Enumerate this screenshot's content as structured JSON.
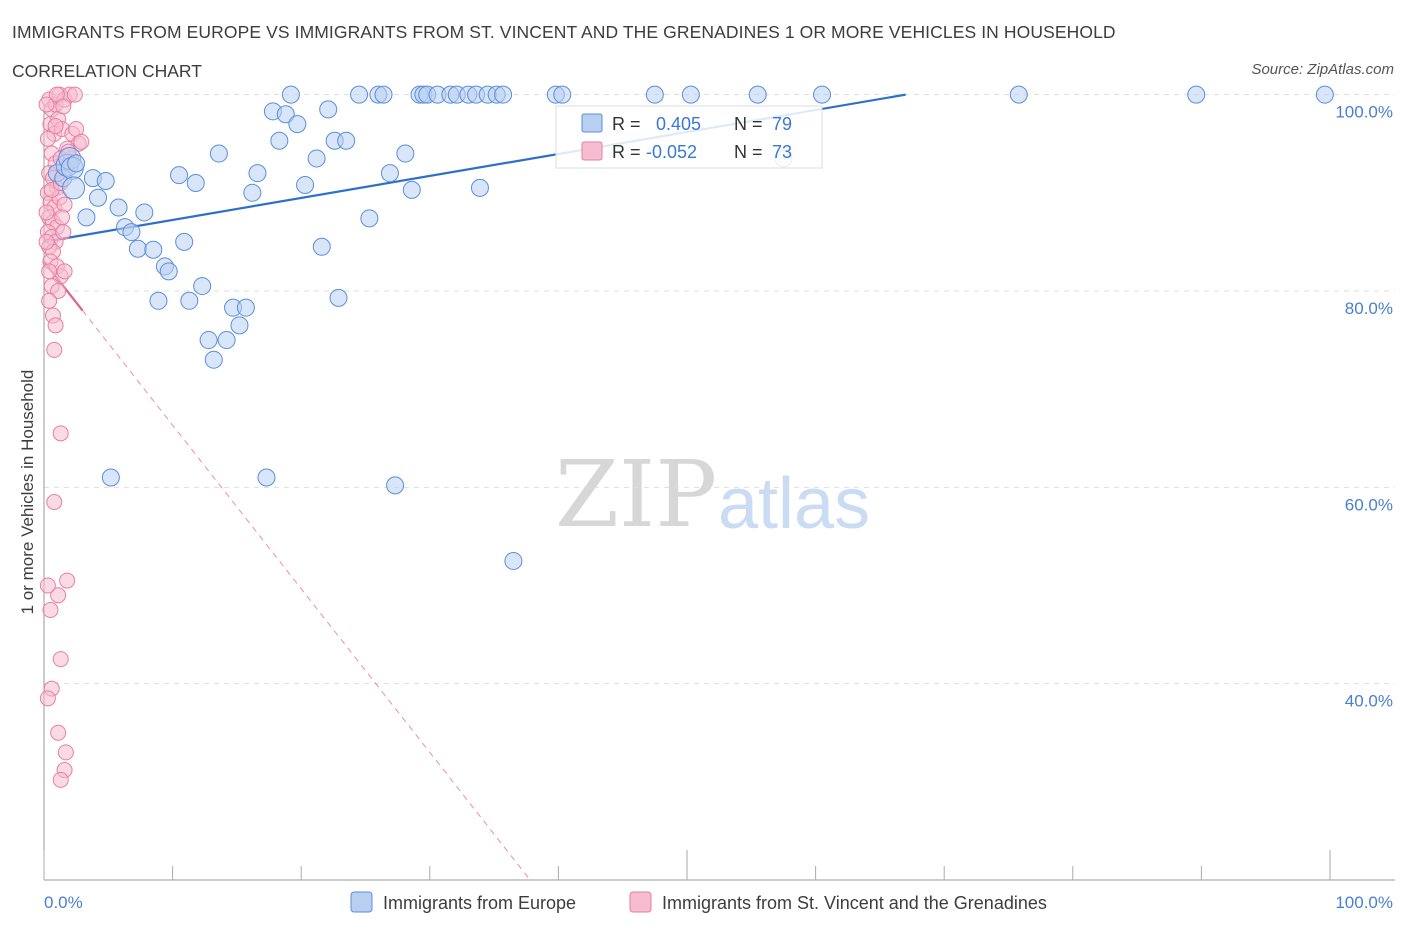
{
  "header": {
    "title": "IMMIGRANTS FROM EUROPE VS IMMIGRANTS FROM ST. VINCENT AND THE GRENADINES 1 OR MORE VEHICLES IN HOUSEHOLD",
    "subtitle": "CORRELATION CHART",
    "source": "Source: ZipAtlas.com"
  },
  "watermark": {
    "zip": "ZIP",
    "atlas": "atlas"
  },
  "colors": {
    "europe": "#5b8fd9",
    "europe_fill": "#b9cff2",
    "svg": "#e87ea3",
    "svg_fill": "#f6bdd0",
    "trend_europe": "#2f6fcc",
    "trend_svg": "#e0608e",
    "grid": "#dddddd",
    "tick_label": "#4a7fd0"
  },
  "stats": {
    "europe": {
      "r_label": "R =",
      "r_value": "0.405",
      "n_label": "N =",
      "n_value": "79"
    },
    "svg": {
      "r_label": "R =",
      "r_value": "-0.052",
      "n_label": "N =",
      "n_value": "73"
    }
  },
  "chart_data": {
    "type": "scatter",
    "xlabel": "",
    "ylabel": "1 or more Vehicles in Household",
    "xlim": [
      0,
      100
    ],
    "ylim": [
      20,
      102
    ],
    "x_tick_labels": [
      "0.0%",
      "100.0%"
    ],
    "y_ticks": [
      {
        "value": 100,
        "label": "100.0%"
      },
      {
        "value": 80,
        "label": "80.0%"
      },
      {
        "value": 60,
        "label": "60.0%"
      },
      {
        "value": 40,
        "label": "40.0%"
      }
    ],
    "grid": true,
    "legend_position": "bottom",
    "series": [
      {
        "name": "Immigrants from Europe",
        "trend": {
          "x": [
            0,
            67
          ],
          "y": [
            85.0,
            100.0
          ]
        },
        "points": [
          [
            1.0,
            92.0
          ],
          [
            1.5,
            91.5
          ],
          [
            1.8,
            92.8
          ],
          [
            2.0,
            93.5
          ],
          [
            2.2,
            92.5
          ],
          [
            2.3,
            90.5
          ],
          [
            3.3,
            87.5
          ],
          [
            3.8,
            91.5
          ],
          [
            4.2,
            89.5
          ],
          [
            4.8,
            91.2
          ],
          [
            5.2,
            61.0
          ],
          [
            5.8,
            88.5
          ],
          [
            6.3,
            86.5
          ],
          [
            6.8,
            86.0
          ],
          [
            7.3,
            84.3
          ],
          [
            7.8,
            88.0
          ],
          [
            8.5,
            84.2
          ],
          [
            8.9,
            79.0
          ],
          [
            9.4,
            82.5
          ],
          [
            9.7,
            82.0
          ],
          [
            10.5,
            91.8
          ],
          [
            10.9,
            85.0
          ],
          [
            11.3,
            79.0
          ],
          [
            11.8,
            91.0
          ],
          [
            12.3,
            80.5
          ],
          [
            12.8,
            75.0
          ],
          [
            13.2,
            73.0
          ],
          [
            13.6,
            94.0
          ],
          [
            14.2,
            75.0
          ],
          [
            14.7,
            78.3
          ],
          [
            15.2,
            76.5
          ],
          [
            15.7,
            78.3
          ],
          [
            16.2,
            90.0
          ],
          [
            16.6,
            92.0
          ],
          [
            17.3,
            61.0
          ],
          [
            17.8,
            98.3
          ],
          [
            18.3,
            95.3
          ],
          [
            18.8,
            98.0
          ],
          [
            19.2,
            100.0
          ],
          [
            19.7,
            97.0
          ],
          [
            20.3,
            90.8
          ],
          [
            21.2,
            93.5
          ],
          [
            21.6,
            84.5
          ],
          [
            22.1,
            98.5
          ],
          [
            22.6,
            95.3
          ],
          [
            22.9,
            79.3
          ],
          [
            23.5,
            95.3
          ],
          [
            24.5,
            100.0
          ],
          [
            25.3,
            87.4
          ],
          [
            26.0,
            100.0
          ],
          [
            26.4,
            100.0
          ],
          [
            26.9,
            92.0
          ],
          [
            27.3,
            60.2
          ],
          [
            28.1,
            94.0
          ],
          [
            28.6,
            90.3
          ],
          [
            29.2,
            100.0
          ],
          [
            29.5,
            100.0
          ],
          [
            29.8,
            100.0
          ],
          [
            30.6,
            100.0
          ],
          [
            31.6,
            100.0
          ],
          [
            32.1,
            100.0
          ],
          [
            33.0,
            100.0
          ],
          [
            33.6,
            100.0
          ],
          [
            33.9,
            90.5
          ],
          [
            34.5,
            100.0
          ],
          [
            35.2,
            100.0
          ],
          [
            35.7,
            100.0
          ],
          [
            36.5,
            52.5
          ],
          [
            39.8,
            100.0
          ],
          [
            40.3,
            100.0
          ],
          [
            47.5,
            100.0
          ],
          [
            50.3,
            100.0
          ],
          [
            55.5,
            100.0
          ],
          [
            57.5,
            93.5
          ],
          [
            60.5,
            100.0
          ],
          [
            75.8,
            100.0
          ],
          [
            89.6,
            100.0
          ],
          [
            99.6,
            100.0
          ],
          [
            2.5,
            93.0
          ]
        ]
      },
      {
        "name": "Immigrants from St. Vincent and the Grenadines",
        "trend": {
          "x": [
            0,
            3.0
          ],
          "y": [
            83.0,
            78.0
          ]
        },
        "points": [
          [
            0.4,
            99.5
          ],
          [
            0.6,
            98.5
          ],
          [
            0.9,
            99.0
          ],
          [
            1.2,
            100.0
          ],
          [
            1.6,
            99.5
          ],
          [
            2.0,
            100.0
          ],
          [
            2.4,
            100.0
          ],
          [
            0.5,
            97.0
          ],
          [
            0.8,
            96.0
          ],
          [
            1.1,
            97.5
          ],
          [
            1.4,
            96.5
          ],
          [
            2.2,
            96.0
          ],
          [
            2.7,
            95.0
          ],
          [
            1.8,
            94.5
          ],
          [
            0.3,
            95.5
          ],
          [
            0.6,
            94.0
          ],
          [
            0.9,
            93.0
          ],
          [
            1.3,
            93.5
          ],
          [
            1.7,
            92.5
          ],
          [
            2.1,
            93.5
          ],
          [
            0.4,
            92.0
          ],
          [
            0.7,
            91.5
          ],
          [
            1.0,
            90.5
          ],
          [
            0.3,
            90.0
          ],
          [
            0.5,
            89.0
          ],
          [
            0.8,
            88.5
          ],
          [
            1.2,
            89.5
          ],
          [
            1.6,
            88.8
          ],
          [
            0.4,
            87.5
          ],
          [
            0.7,
            87.0
          ],
          [
            1.0,
            86.5
          ],
          [
            1.4,
            87.5
          ],
          [
            0.3,
            86.0
          ],
          [
            0.6,
            85.5
          ],
          [
            0.9,
            85.0
          ],
          [
            0.4,
            84.5
          ],
          [
            0.7,
            84.0
          ],
          [
            1.5,
            86.0
          ],
          [
            0.5,
            83.0
          ],
          [
            1.0,
            82.5
          ],
          [
            1.3,
            81.5
          ],
          [
            1.6,
            82.0
          ],
          [
            0.6,
            80.5
          ],
          [
            1.1,
            80.0
          ],
          [
            0.4,
            79.0
          ],
          [
            0.7,
            77.5
          ],
          [
            0.9,
            76.5
          ],
          [
            0.8,
            74.0
          ],
          [
            1.3,
            65.5
          ],
          [
            0.8,
            58.5
          ],
          [
            1.8,
            50.5
          ],
          [
            1.1,
            49.0
          ],
          [
            0.5,
            47.5
          ],
          [
            0.3,
            50.0
          ],
          [
            1.3,
            42.5
          ],
          [
            0.6,
            39.5
          ],
          [
            0.3,
            38.5
          ],
          [
            1.1,
            35.0
          ],
          [
            1.7,
            33.0
          ],
          [
            1.6,
            31.2
          ],
          [
            1.3,
            30.2
          ],
          [
            2.5,
            96.5
          ],
          [
            0.2,
            99.0
          ],
          [
            2.9,
            95.2
          ],
          [
            0.2,
            88.0
          ],
          [
            1.9,
            94.2
          ],
          [
            0.2,
            85.0
          ],
          [
            1.0,
            100.0
          ],
          [
            1.5,
            98.8
          ],
          [
            0.6,
            90.3
          ],
          [
            1.3,
            91.0
          ],
          [
            0.9,
            96.8
          ],
          [
            0.4,
            82.0
          ]
        ]
      }
    ]
  },
  "legend": {
    "items": [
      {
        "label": "Immigrants from Europe"
      },
      {
        "label": "Immigrants from St. Vincent and the Grenadines"
      }
    ]
  }
}
